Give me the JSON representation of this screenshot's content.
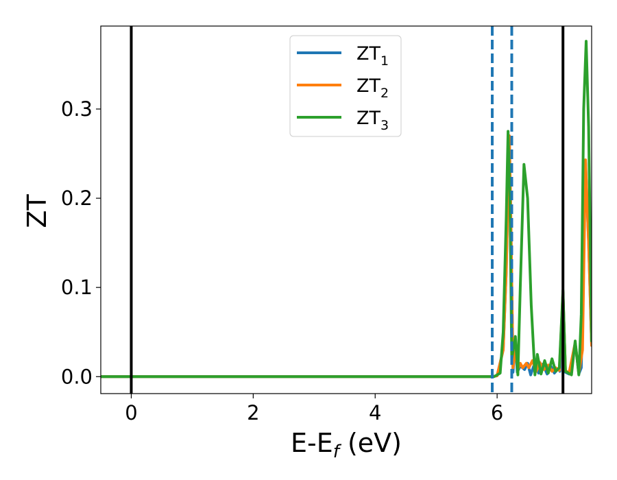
{
  "chart_data": {
    "type": "line",
    "xlabel": "E-E",
    "xlabel_sub": "f",
    "xlabel_unit": " (eV)",
    "ylabel": "ZT",
    "xlim": [
      -0.5,
      7.55
    ],
    "ylim": [
      -0.019,
      0.393
    ],
    "x_ticks": [
      0,
      2,
      4,
      6
    ],
    "x_tick_labels": [
      "0",
      "2",
      "4",
      "6"
    ],
    "y_ticks": [
      0.0,
      0.1,
      0.2,
      0.3
    ],
    "y_tick_labels": [
      "0.0",
      "0.1",
      "0.2",
      "0.3"
    ],
    "grid": false,
    "legend_position": "top-center",
    "vertical_lines": [
      {
        "x": 0.0,
        "style": "solid",
        "color": "#000000"
      },
      {
        "x": 7.08,
        "style": "solid",
        "color": "#000000"
      },
      {
        "x": 5.92,
        "style": "dashed",
        "color": "#1f77b4"
      },
      {
        "x": 6.24,
        "style": "dashed",
        "color": "#1f77b4"
      }
    ],
    "series": [
      {
        "name": "ZT",
        "sub": "1",
        "color": "#1f77b4",
        "points": [
          [
            -0.5,
            0
          ],
          [
            5.9,
            0
          ],
          [
            6.0,
            0.001
          ],
          [
            6.1,
            0.03
          ],
          [
            6.15,
            0.12
          ],
          [
            6.2,
            0.27
          ],
          [
            6.22,
            0.2
          ],
          [
            6.26,
            0.005
          ],
          [
            6.3,
            0.04
          ],
          [
            6.33,
            0.005
          ],
          [
            6.38,
            0.012
          ],
          [
            6.45,
            0.008
          ],
          [
            6.5,
            0.015
          ],
          [
            6.55,
            0.002
          ],
          [
            6.62,
            0.016
          ],
          [
            6.68,
            0.004
          ],
          [
            6.75,
            0.014
          ],
          [
            6.82,
            0.003
          ],
          [
            6.88,
            0.012
          ],
          [
            6.94,
            0.004
          ],
          [
            7.0,
            0.009
          ],
          [
            7.03,
            0.006
          ],
          [
            7.08,
            0.095
          ],
          [
            7.12,
            0.005
          ],
          [
            7.18,
            0.003
          ],
          [
            7.28,
            0.038
          ],
          [
            7.34,
            0.003
          ],
          [
            7.38,
            0.01
          ],
          [
            7.45,
            0.24
          ],
          [
            7.5,
            0.15
          ],
          [
            7.55,
            0.035
          ]
        ]
      },
      {
        "name": "ZT",
        "sub": "2",
        "color": "#ff7f0e",
        "points": [
          [
            -0.5,
            0
          ],
          [
            5.9,
            0
          ],
          [
            6.0,
            0.001
          ],
          [
            6.1,
            0.03
          ],
          [
            6.15,
            0.12
          ],
          [
            6.2,
            0.27
          ],
          [
            6.22,
            0.2
          ],
          [
            6.26,
            0.01
          ],
          [
            6.3,
            0.03
          ],
          [
            6.34,
            0.008
          ],
          [
            6.38,
            0.015
          ],
          [
            6.42,
            0.01
          ],
          [
            6.48,
            0.015
          ],
          [
            6.52,
            0.01
          ],
          [
            6.58,
            0.018
          ],
          [
            6.64,
            0.006
          ],
          [
            6.7,
            0.016
          ],
          [
            6.77,
            0.008
          ],
          [
            6.84,
            0.013
          ],
          [
            6.9,
            0.006
          ],
          [
            6.96,
            0.01
          ],
          [
            7.02,
            0.007
          ],
          [
            7.08,
            0.095
          ],
          [
            7.12,
            0.007
          ],
          [
            7.18,
            0.004
          ],
          [
            7.28,
            0.038
          ],
          [
            7.34,
            0.004
          ],
          [
            7.4,
            0.03
          ],
          [
            7.45,
            0.243
          ],
          [
            7.5,
            0.15
          ],
          [
            7.55,
            0.035
          ]
        ]
      },
      {
        "name": "ZT",
        "sub": "3",
        "color": "#2ca02c",
        "points": [
          [
            -0.5,
            0
          ],
          [
            5.95,
            0
          ],
          [
            6.05,
            0.004
          ],
          [
            6.1,
            0.05
          ],
          [
            6.15,
            0.18
          ],
          [
            6.18,
            0.275
          ],
          [
            6.21,
            0.2
          ],
          [
            6.24,
            0.02
          ],
          [
            6.3,
            0.045
          ],
          [
            6.34,
            0.002
          ],
          [
            6.38,
            0.1
          ],
          [
            6.44,
            0.238
          ],
          [
            6.5,
            0.2
          ],
          [
            6.56,
            0.08
          ],
          [
            6.62,
            0.002
          ],
          [
            6.66,
            0.025
          ],
          [
            6.72,
            0.003
          ],
          [
            6.78,
            0.018
          ],
          [
            6.84,
            0.004
          ],
          [
            6.9,
            0.02
          ],
          [
            6.96,
            0.006
          ],
          [
            7.02,
            0.01
          ],
          [
            7.08,
            0.097
          ],
          [
            7.12,
            0.006
          ],
          [
            7.22,
            0.002
          ],
          [
            7.28,
            0.04
          ],
          [
            7.34,
            0.002
          ],
          [
            7.38,
            0.07
          ],
          [
            7.42,
            0.3
          ],
          [
            7.46,
            0.376
          ],
          [
            7.5,
            0.28
          ],
          [
            7.55,
            0.04
          ]
        ]
      }
    ]
  }
}
